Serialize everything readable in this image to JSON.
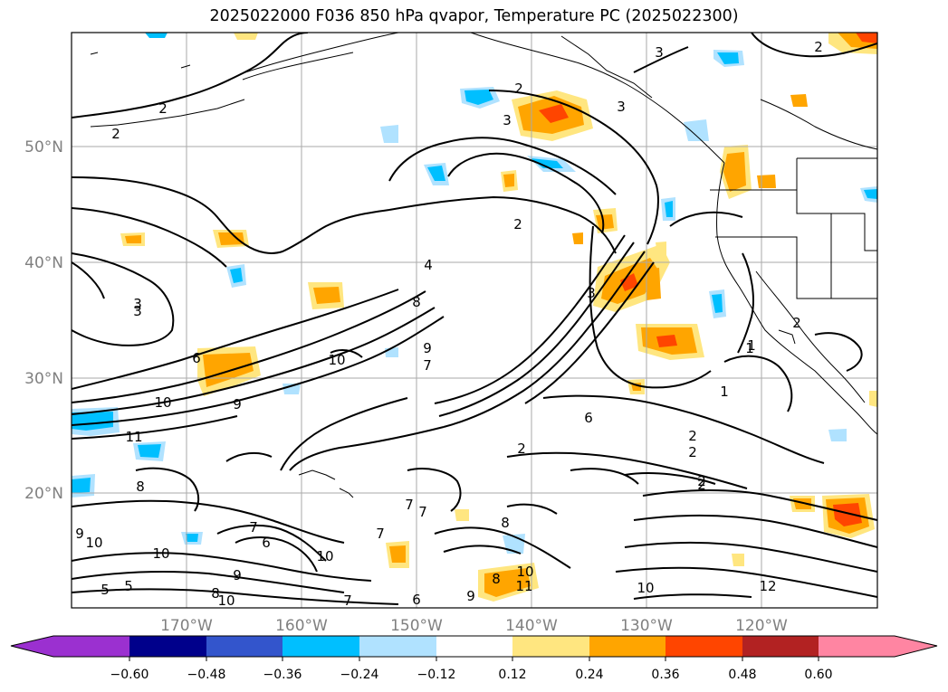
{
  "title": "2025022000 F036 850 hPa qvapor, Temperature PC (2025022300)",
  "map": {
    "lat_ticks": [
      "50°N",
      "40°N",
      "30°N",
      "20°N"
    ],
    "lon_ticks": [
      "170°W",
      "160°W",
      "150°W",
      "140°W",
      "130°W",
      "120°W"
    ],
    "contour_labels": [
      "3",
      "2",
      "2",
      "2",
      "3",
      "3",
      "2",
      "2",
      "4",
      "8",
      "3",
      "3",
      "6",
      "9",
      "10",
      "10",
      "7",
      "9",
      "11",
      "1",
      "1",
      "2",
      "2",
      "2",
      "6",
      "9",
      "10",
      "8",
      "7",
      "7",
      "5",
      "8",
      "10",
      "6",
      "10",
      "7",
      "9",
      "11",
      "12",
      "10",
      "8",
      "10",
      "5",
      "8",
      "7",
      "9",
      "10",
      "6",
      "7",
      "2",
      "2",
      "2",
      "1",
      "3"
    ]
  },
  "colorbar": {
    "ticks": [
      "−0.60",
      "−0.48",
      "−0.36",
      "−0.24",
      "−0.12",
      "0.12",
      "0.24",
      "0.36",
      "0.48",
      "0.60"
    ],
    "colors": [
      "#9b30d0",
      "#00008b",
      "#3355cc",
      "#00bfff",
      "#b0e2ff",
      "#ffffff",
      "#ffe680",
      "#ffa500",
      "#ff4500",
      "#b22222",
      "#ff85a2"
    ]
  }
}
